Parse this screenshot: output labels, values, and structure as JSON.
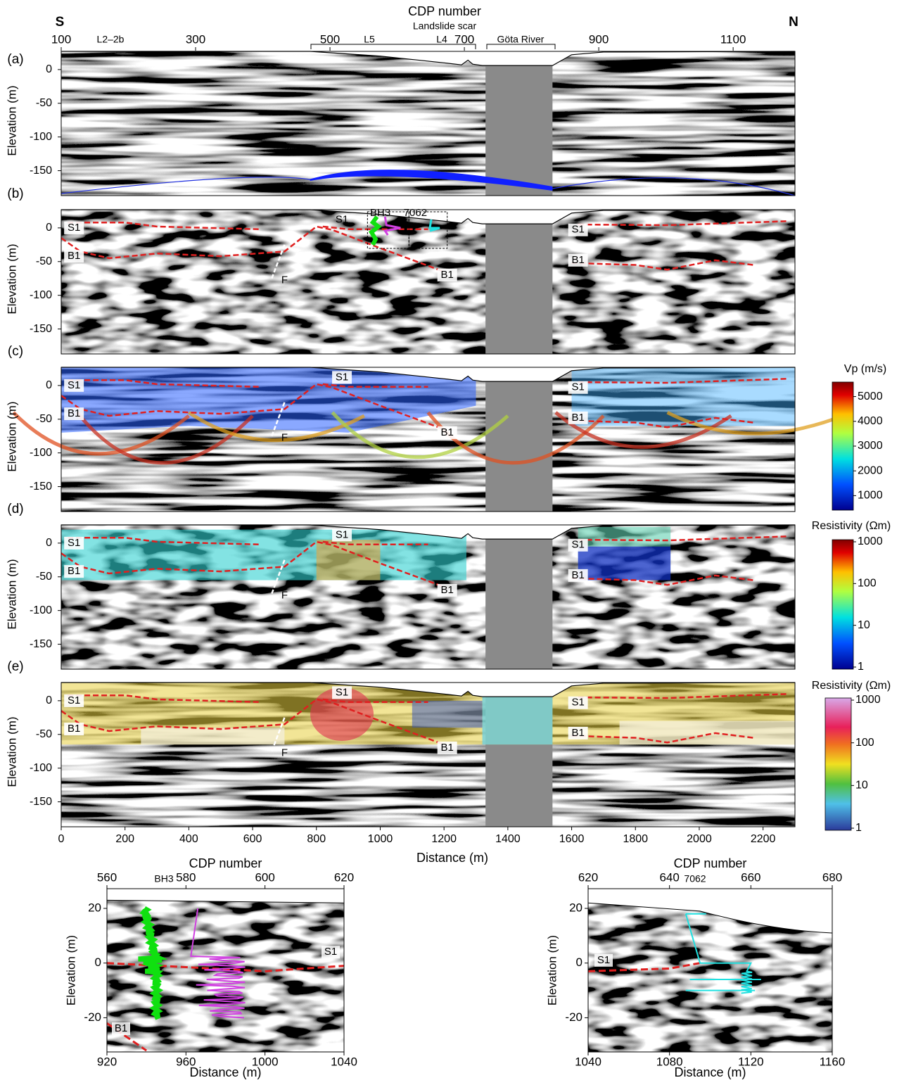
{
  "header": {
    "south": "S",
    "north": "N",
    "cdp_title": "CDP number",
    "cdp_lim": [
      100,
      1192
    ],
    "cdp_ticks": [
      100,
      300,
      500,
      700,
      900,
      1100
    ],
    "annotations": [
      "L2–2b",
      "L5",
      "L4",
      "Landslide scar",
      "Göta River"
    ]
  },
  "elevation_axis": {
    "title": "Elevation (m)",
    "ylim": [
      -187,
      27
    ],
    "yticks": [
      0,
      -50,
      -100,
      -150
    ]
  },
  "distance_axis": {
    "title": "Distance (m)",
    "xlim": [
      0,
      2300
    ],
    "xticks": [
      0,
      200,
      400,
      600,
      800,
      1000,
      1200,
      1400,
      1600,
      1800,
      2000,
      2200
    ]
  },
  "panels": [
    {
      "label": "(a)",
      "markers": []
    },
    {
      "label": "(b)",
      "markers": [
        "S1",
        "B1",
        "F",
        "S1",
        "B1",
        "S1",
        "B1",
        "BH3",
        "7062"
      ]
    },
    {
      "label": "(c)",
      "markers": [
        "S1",
        "B1",
        "F",
        "S1",
        "B1",
        "S1",
        "B1"
      ]
    },
    {
      "label": "(d)",
      "markers": [
        "S1",
        "B1",
        "F",
        "S1",
        "B1",
        "S1",
        "B1"
      ]
    },
    {
      "label": "(e)",
      "markers": [
        "S1",
        "B1",
        "F",
        "S1",
        "B1",
        "S1",
        "B1"
      ]
    }
  ],
  "colorbars": [
    {
      "title": "Vp (m/s)",
      "lim": [
        500,
        5500
      ],
      "ticks": [
        1000,
        2000,
        3000,
        4000,
        5000
      ]
    },
    {
      "title": "Resistivity (Ωm)",
      "log": true,
      "lim": [
        1,
        1000
      ],
      "ticks": [
        1,
        10,
        100,
        1000
      ]
    },
    {
      "title": "Resistivity (Ωm)",
      "log": true,
      "lim": [
        1,
        1000
      ],
      "ticks": [
        1,
        10,
        100,
        1000
      ]
    }
  ],
  "insets": [
    {
      "label": "BH3",
      "cdp_title": "CDP number",
      "cdp_lim": [
        560,
        620
      ],
      "cdp_ticks": [
        560,
        580,
        600,
        620
      ],
      "x_title": "Distance (m)",
      "xlim": [
        920,
        1040
      ],
      "xticks": [
        920,
        960,
        1000,
        1040
      ],
      "y_title": "Elevation (m)",
      "ylim": [
        -32.5,
        27.2
      ],
      "yticks": [
        20,
        0,
        -20
      ],
      "markers": [
        "S1",
        "B1"
      ]
    },
    {
      "label": "7062",
      "cdp_title": "CDP number",
      "cdp_lim": [
        620,
        680
      ],
      "cdp_ticks": [
        620,
        640,
        660,
        680
      ],
      "x_title": "Distance (m)",
      "xlim": [
        1040,
        1160
      ],
      "xticks": [
        1040,
        1080,
        1120,
        1160
      ],
      "y_title": "Elevation (m)",
      "ylim": [
        -32.5,
        27.2
      ],
      "yticks": [
        20,
        0,
        -20
      ],
      "markers": [
        "S1"
      ]
    }
  ]
}
